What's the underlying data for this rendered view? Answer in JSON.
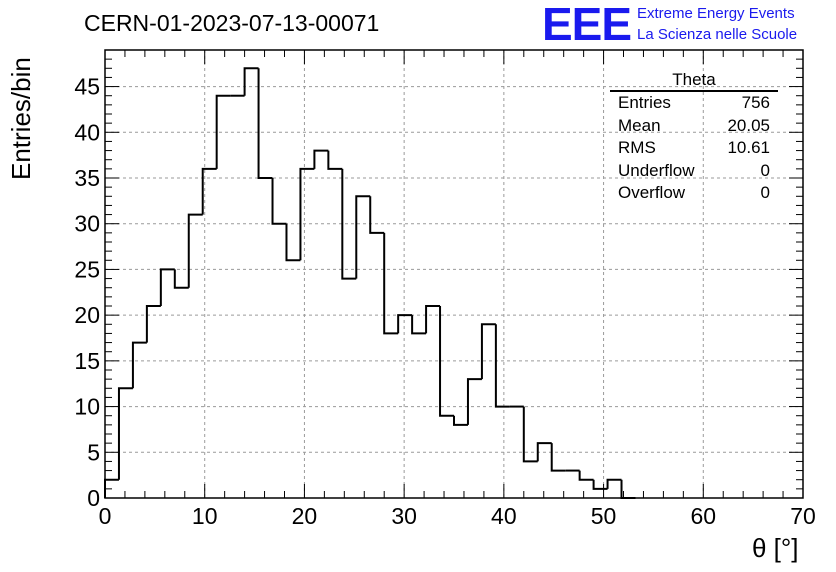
{
  "header": {
    "title": "CERN-01-2023-07-13-00071",
    "logo_mark": "EEE",
    "logo_line1": "Extreme Energy Events",
    "logo_line2": "La Scienza nelle Scuole"
  },
  "stats_box": {
    "name": "Theta",
    "rows": [
      {
        "label": "Entries",
        "value": "756"
      },
      {
        "label": "Mean",
        "value": "20.05"
      },
      {
        "label": "RMS",
        "value": "10.61"
      },
      {
        "label": "Underflow",
        "value": "0"
      },
      {
        "label": "Overflow",
        "value": "0"
      }
    ]
  },
  "chart_data": {
    "type": "bar",
    "style": "step-histogram",
    "title": "CERN-01-2023-07-13-00071",
    "xlabel": "θ [°]",
    "ylabel": "Entries/bin",
    "xlim": [
      0,
      70
    ],
    "ylim": [
      0,
      49
    ],
    "x_ticks": [
      0,
      10,
      20,
      30,
      40,
      50,
      60,
      70
    ],
    "y_ticks": [
      0,
      5,
      10,
      15,
      20,
      25,
      30,
      35,
      40,
      45
    ],
    "grid": true,
    "bin_width": 1.4,
    "bin_edges_start": 0,
    "values": [
      2,
      12,
      17,
      21,
      25,
      23,
      31,
      36,
      44,
      44,
      47,
      35,
      30,
      26,
      36,
      38,
      36,
      24,
      33,
      29,
      18,
      20,
      18,
      21,
      9,
      8,
      13,
      19,
      10,
      10,
      4,
      6,
      3,
      3,
      2,
      1,
      2,
      0
    ],
    "line_color": "#000000",
    "grid_color": "#9a9a9a"
  }
}
